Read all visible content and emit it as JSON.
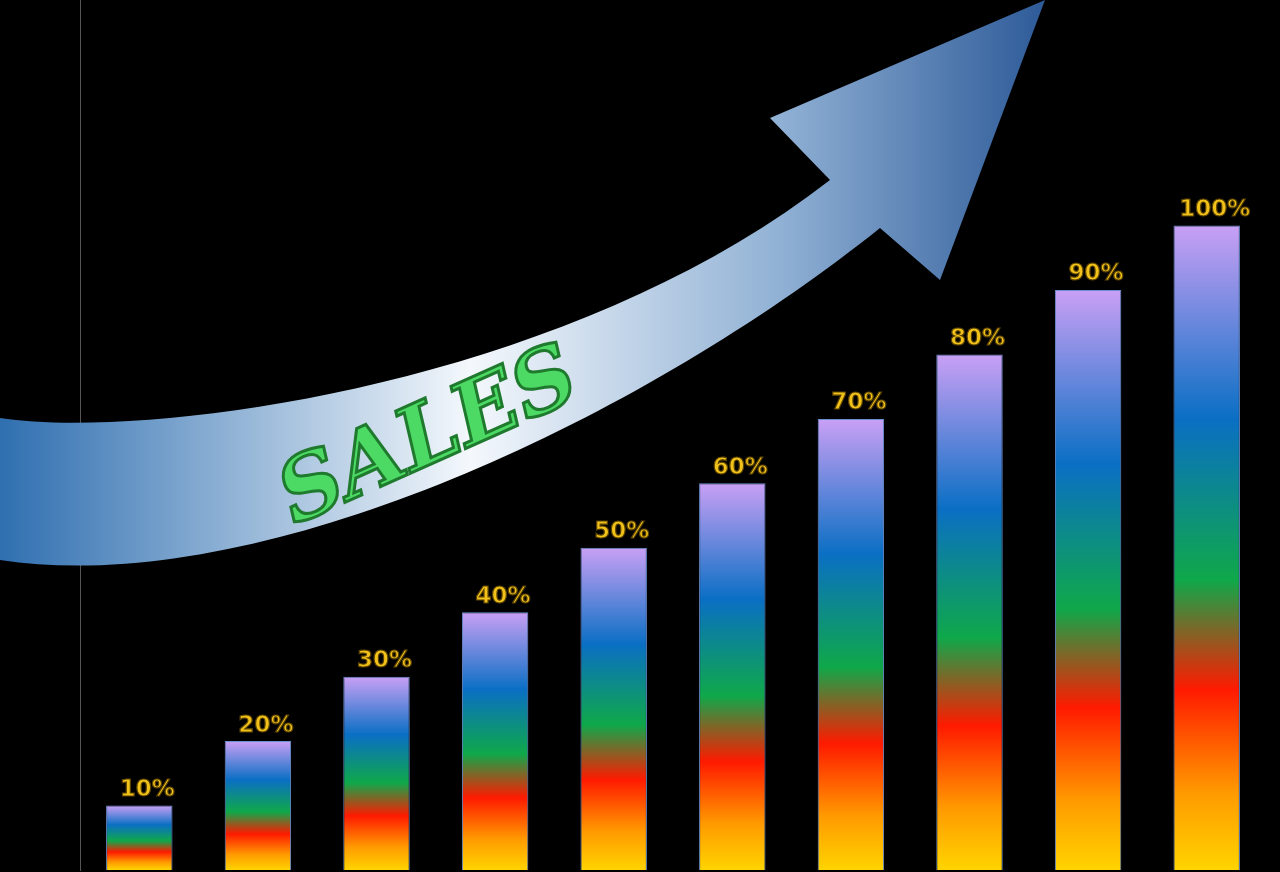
{
  "chart_data": {
    "type": "bar",
    "categories": [
      null,
      null,
      null,
      null,
      null,
      null,
      null,
      null,
      null,
      null
    ],
    "values": [
      10,
      20,
      30,
      40,
      50,
      60,
      70,
      80,
      90,
      100
    ],
    "value_labels": [
      "10%",
      "20%",
      "30%",
      "40%",
      "50%",
      "60%",
      "70%",
      "80%",
      "90%",
      "100%"
    ],
    "data_labels": true,
    "tick_labels": false,
    "grid": false,
    "ylim": [
      0,
      135
    ],
    "annotations": [
      {
        "text": "SALES"
      }
    ]
  }
}
